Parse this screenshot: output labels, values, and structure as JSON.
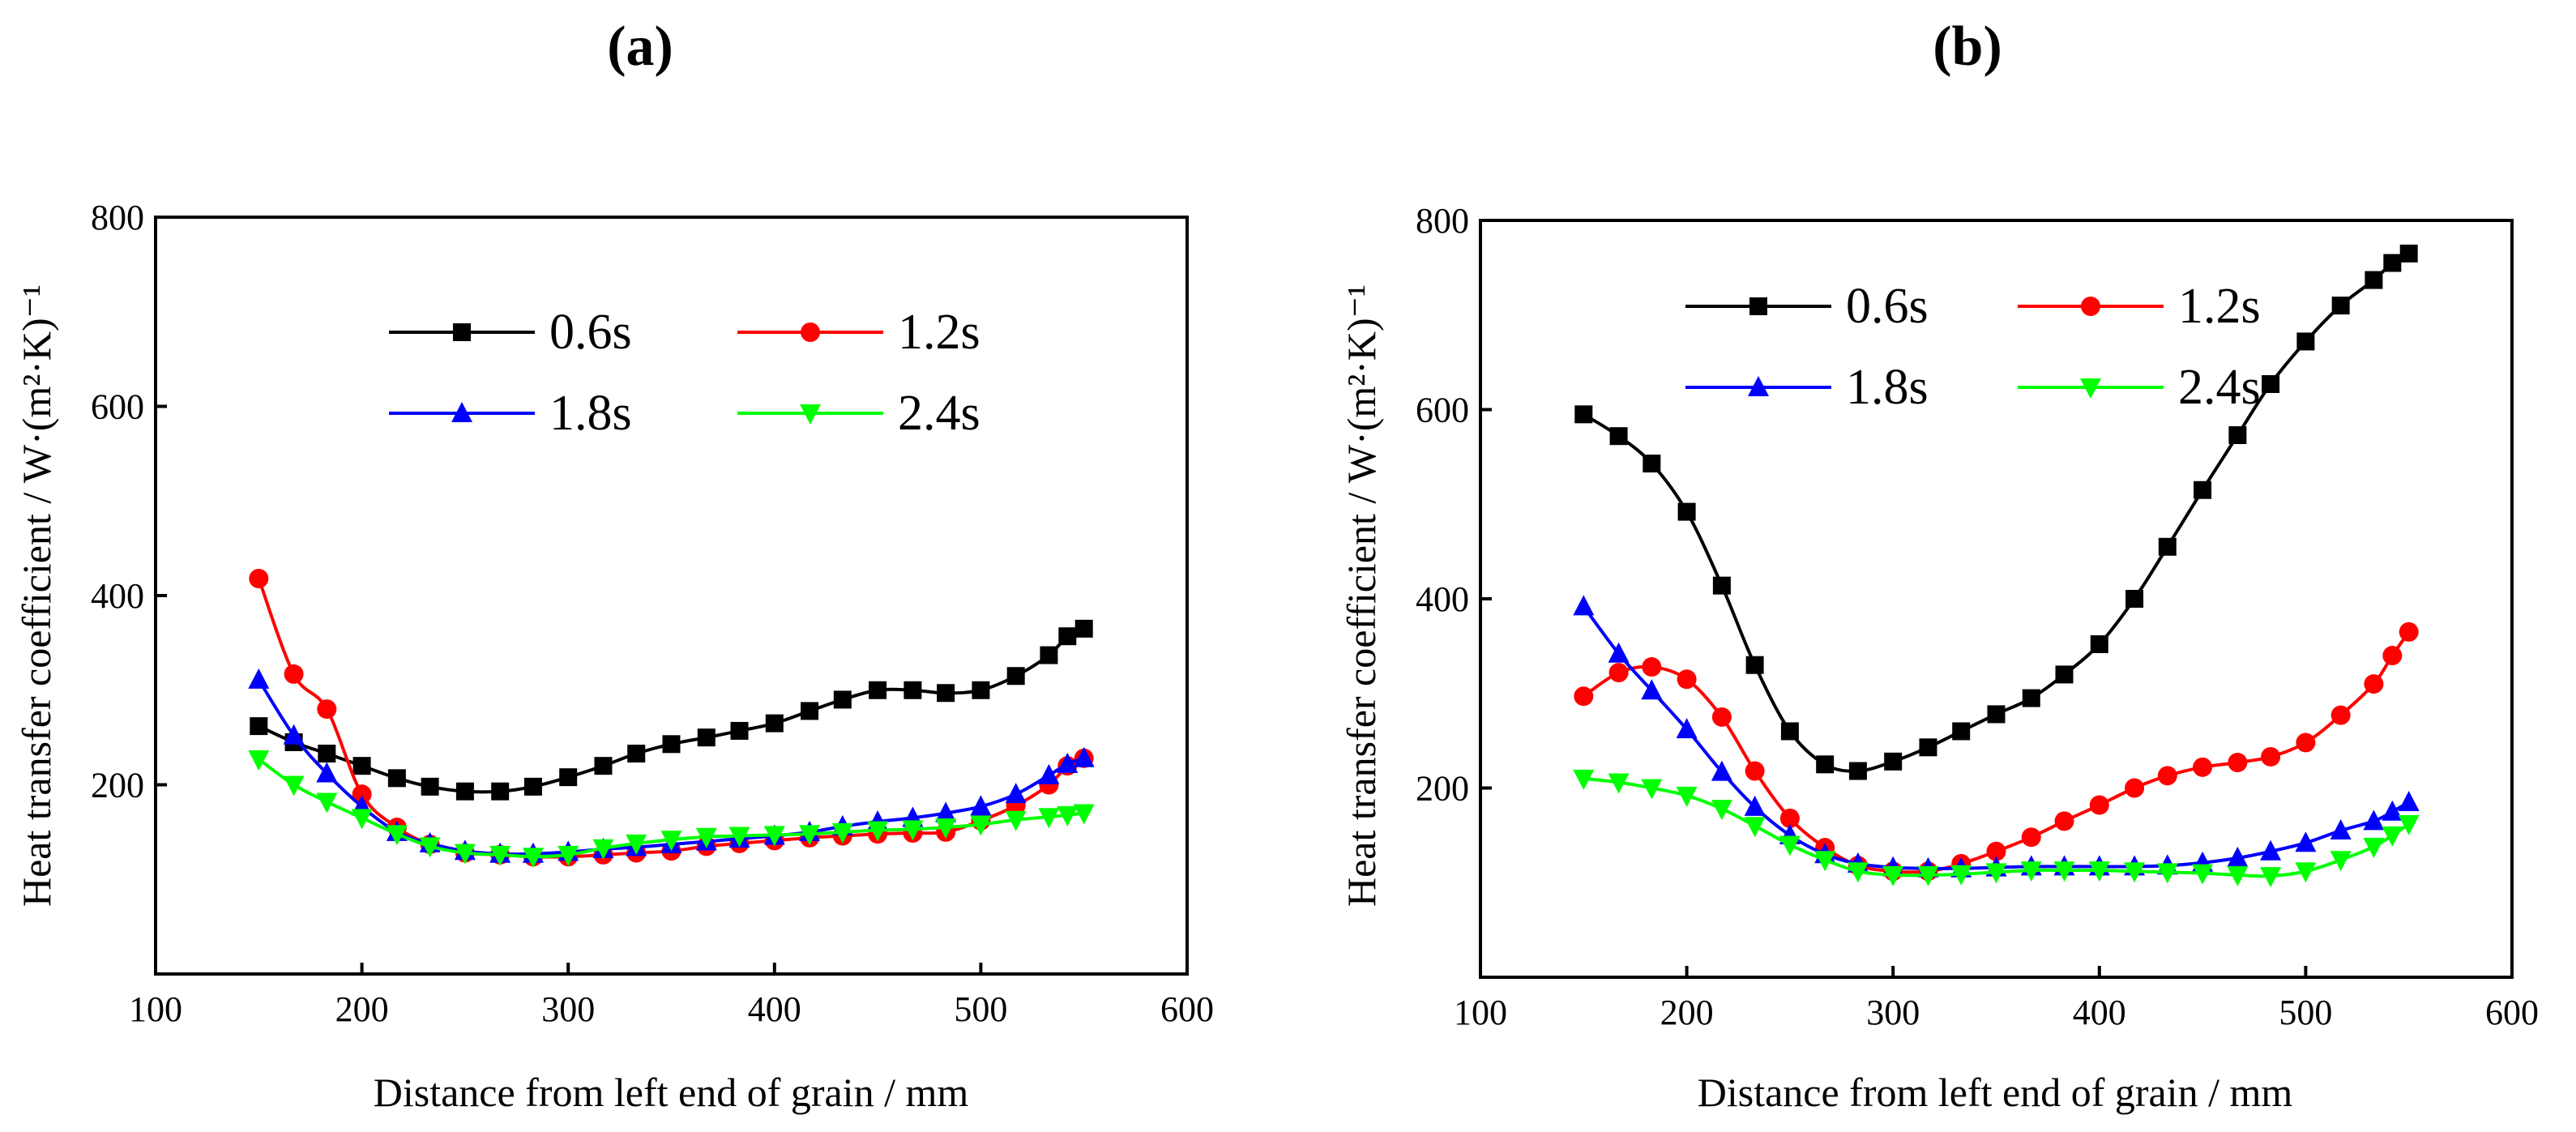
{
  "chart_data": [
    {
      "type": "line",
      "panel_label": "(a)",
      "xlabel": "Distance from left end of grain / mm",
      "ylabel": "Heat transfer coefficient / W·(m²·K)⁻¹",
      "xlim": [
        100,
        600
      ],
      "ylim": [
        0,
        800
      ],
      "xticks": [
        100,
        200,
        300,
        400,
        500,
        600
      ],
      "yticks": [
        200,
        400,
        600,
        800
      ],
      "grid": false,
      "legend_position": "top",
      "x": [
        150,
        167,
        183,
        200,
        217,
        233,
        250,
        267,
        283,
        300,
        317,
        333,
        350,
        367,
        383,
        400,
        417,
        433,
        450,
        467,
        483,
        500,
        517,
        533,
        542,
        550
      ],
      "series": [
        {
          "name": "0.6s",
          "color": "#000000",
          "marker": "square",
          "values": [
            262,
            245,
            233,
            220,
            207,
            198,
            193,
            193,
            198,
            208,
            220,
            233,
            243,
            250,
            257,
            265,
            278,
            290,
            300,
            300,
            297,
            300,
            315,
            337,
            357,
            365
          ]
        },
        {
          "name": "1.2s",
          "color": "#ff0000",
          "marker": "circle",
          "values": [
            418,
            317,
            280,
            190,
            155,
            137,
            128,
            126,
            124,
            124,
            126,
            128,
            130,
            135,
            138,
            141,
            144,
            146,
            148,
            149,
            150,
            162,
            178,
            200,
            220,
            228
          ]
        },
        {
          "name": "1.8s",
          "color": "#0000ff",
          "marker": "triangle-up",
          "values": [
            311,
            252,
            212,
            177,
            150,
            138,
            130,
            127,
            127,
            129,
            132,
            134,
            137,
            140,
            143,
            146,
            150,
            156,
            161,
            165,
            170,
            177,
            190,
            210,
            222,
            228
          ]
        },
        {
          "name": "2.4s",
          "color": "#00ff00",
          "marker": "triangle-down",
          "values": [
            227,
            200,
            182,
            165,
            148,
            135,
            128,
            126,
            124,
            126,
            133,
            138,
            142,
            145,
            146,
            147,
            148,
            150,
            152,
            153,
            155,
            158,
            163,
            166,
            168,
            170
          ]
        }
      ]
    },
    {
      "type": "line",
      "panel_label": "(b)",
      "xlabel": "Distance from left end of grain / mm",
      "ylabel": "Heat transfer coefficient / W·(m²·K)⁻¹",
      "xlim": [
        100,
        600
      ],
      "ylim": [
        0,
        800
      ],
      "xticks": [
        100,
        200,
        300,
        400,
        500,
        600
      ],
      "yticks": [
        200,
        400,
        600,
        800
      ],
      "grid": false,
      "legend_position": "top",
      "x": [
        150,
        167,
        183,
        200,
        217,
        233,
        250,
        267,
        283,
        300,
        317,
        333,
        350,
        367,
        383,
        400,
        417,
        433,
        450,
        467,
        483,
        500,
        517,
        533,
        542,
        550
      ],
      "series": [
        {
          "name": "0.6s",
          "color": "#000000",
          "marker": "square",
          "values": [
            595,
            572,
            543,
            492,
            414,
            330,
            260,
            225,
            218,
            228,
            243,
            260,
            278,
            295,
            320,
            352,
            400,
            455,
            515,
            573,
            627,
            672,
            710,
            737,
            755,
            765
          ]
        },
        {
          "name": "1.2s",
          "color": "#ff0000",
          "marker": "circle",
          "values": [
            297,
            322,
            328,
            315,
            275,
            218,
            168,
            137,
            118,
            112,
            112,
            120,
            133,
            148,
            165,
            182,
            200,
            213,
            222,
            227,
            233,
            248,
            277,
            310,
            340,
            365
          ]
        },
        {
          "name": "1.8s",
          "color": "#0000ff",
          "marker": "triangle-up",
          "values": [
            392,
            342,
            303,
            262,
            217,
            180,
            150,
            130,
            120,
            116,
            115,
            115,
            116,
            117,
            117,
            117,
            117,
            118,
            121,
            126,
            133,
            142,
            155,
            165,
            175,
            185
          ]
        },
        {
          "name": "2.4s",
          "color": "#00ff00",
          "marker": "triangle-down",
          "values": [
            210,
            206,
            200,
            192,
            178,
            160,
            140,
            124,
            112,
            108,
            108,
            109,
            111,
            113,
            113,
            113,
            112,
            111,
            110,
            108,
            107,
            112,
            124,
            138,
            150,
            162
          ]
        }
      ]
    }
  ]
}
